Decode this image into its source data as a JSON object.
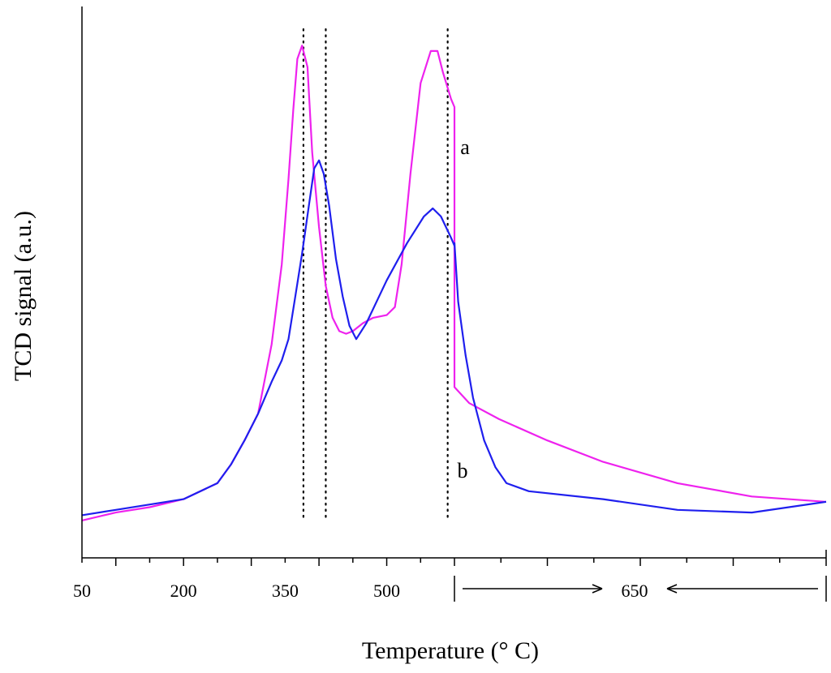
{
  "chart_data": {
    "type": "line",
    "title": "",
    "xlabel": "Temperature (° C)",
    "ylabel": "TCD signal (a.u.)",
    "x_tick_labels": [
      "50",
      "200",
      "350",
      "500"
    ],
    "hold_label": "650",
    "ramp_ticks": [
      50,
      100,
      150,
      200,
      250,
      300,
      350,
      400,
      450,
      500,
      550,
      600
    ],
    "xlim": [
      50,
      600
    ],
    "x_ramp_end": 600,
    "hold_minor_ticks": 8,
    "ylim": [
      0,
      100
    ],
    "grid": false,
    "reference_lines_x": [
      377,
      410,
      590
    ],
    "series": [
      {
        "name": "a",
        "color": "#ee22ee",
        "ramp": [
          [
            50,
            7
          ],
          [
            100,
            8.5
          ],
          [
            150,
            9.5
          ],
          [
            200,
            11
          ],
          [
            250,
            14
          ],
          [
            270,
            17.5
          ],
          [
            290,
            22
          ],
          [
            310,
            27
          ],
          [
            330,
            40
          ],
          [
            345,
            55
          ],
          [
            355,
            71
          ],
          [
            362,
            84
          ],
          [
            368,
            93.5
          ],
          [
            375,
            96
          ],
          [
            383,
            92
          ],
          [
            390,
            76
          ],
          [
            400,
            62
          ],
          [
            410,
            51
          ],
          [
            420,
            45
          ],
          [
            430,
            42.5
          ],
          [
            440,
            42
          ],
          [
            450,
            42.5
          ],
          [
            465,
            44
          ],
          [
            480,
            45
          ],
          [
            500,
            45.5
          ],
          [
            512,
            47
          ],
          [
            522,
            55
          ],
          [
            535,
            72
          ],
          [
            550,
            89
          ],
          [
            565,
            95
          ],
          [
            575,
            95
          ],
          [
            583,
            91
          ],
          [
            595,
            86
          ],
          [
            600,
            84.5
          ]
        ],
        "hold": [
          [
            0.0,
            84
          ],
          [
            0.0,
            32
          ],
          [
            0.04,
            29
          ],
          [
            0.12,
            26
          ],
          [
            0.25,
            22
          ],
          [
            0.4,
            18
          ],
          [
            0.6,
            14
          ],
          [
            0.8,
            11.5
          ],
          [
            1.0,
            10.5
          ]
        ]
      },
      {
        "name": "b",
        "color": "#1f1fee",
        "ramp": [
          [
            50,
            8
          ],
          [
            100,
            9
          ],
          [
            150,
            10
          ],
          [
            200,
            11
          ],
          [
            250,
            14
          ],
          [
            270,
            17.5
          ],
          [
            290,
            22
          ],
          [
            310,
            27
          ],
          [
            330,
            33
          ],
          [
            345,
            37
          ],
          [
            355,
            41
          ],
          [
            365,
            49
          ],
          [
            375,
            57
          ],
          [
            385,
            66
          ],
          [
            393,
            73
          ],
          [
            400,
            74.5
          ],
          [
            407,
            72
          ],
          [
            415,
            66
          ],
          [
            425,
            56
          ],
          [
            435,
            49
          ],
          [
            445,
            43.5
          ],
          [
            455,
            41
          ],
          [
            470,
            44
          ],
          [
            500,
            52
          ],
          [
            530,
            59
          ],
          [
            555,
            64
          ],
          [
            568,
            65.5
          ],
          [
            580,
            64
          ],
          [
            595,
            60
          ],
          [
            600,
            58.5
          ]
        ],
        "hold": [
          [
            0.0,
            59
          ],
          [
            0.01,
            48
          ],
          [
            0.03,
            38
          ],
          [
            0.05,
            30
          ],
          [
            0.08,
            22
          ],
          [
            0.11,
            17
          ],
          [
            0.14,
            14
          ],
          [
            0.2,
            12.5
          ],
          [
            0.4,
            11
          ],
          [
            0.6,
            9
          ],
          [
            0.8,
            8.5
          ],
          [
            1.0,
            10.5
          ]
        ]
      }
    ]
  }
}
